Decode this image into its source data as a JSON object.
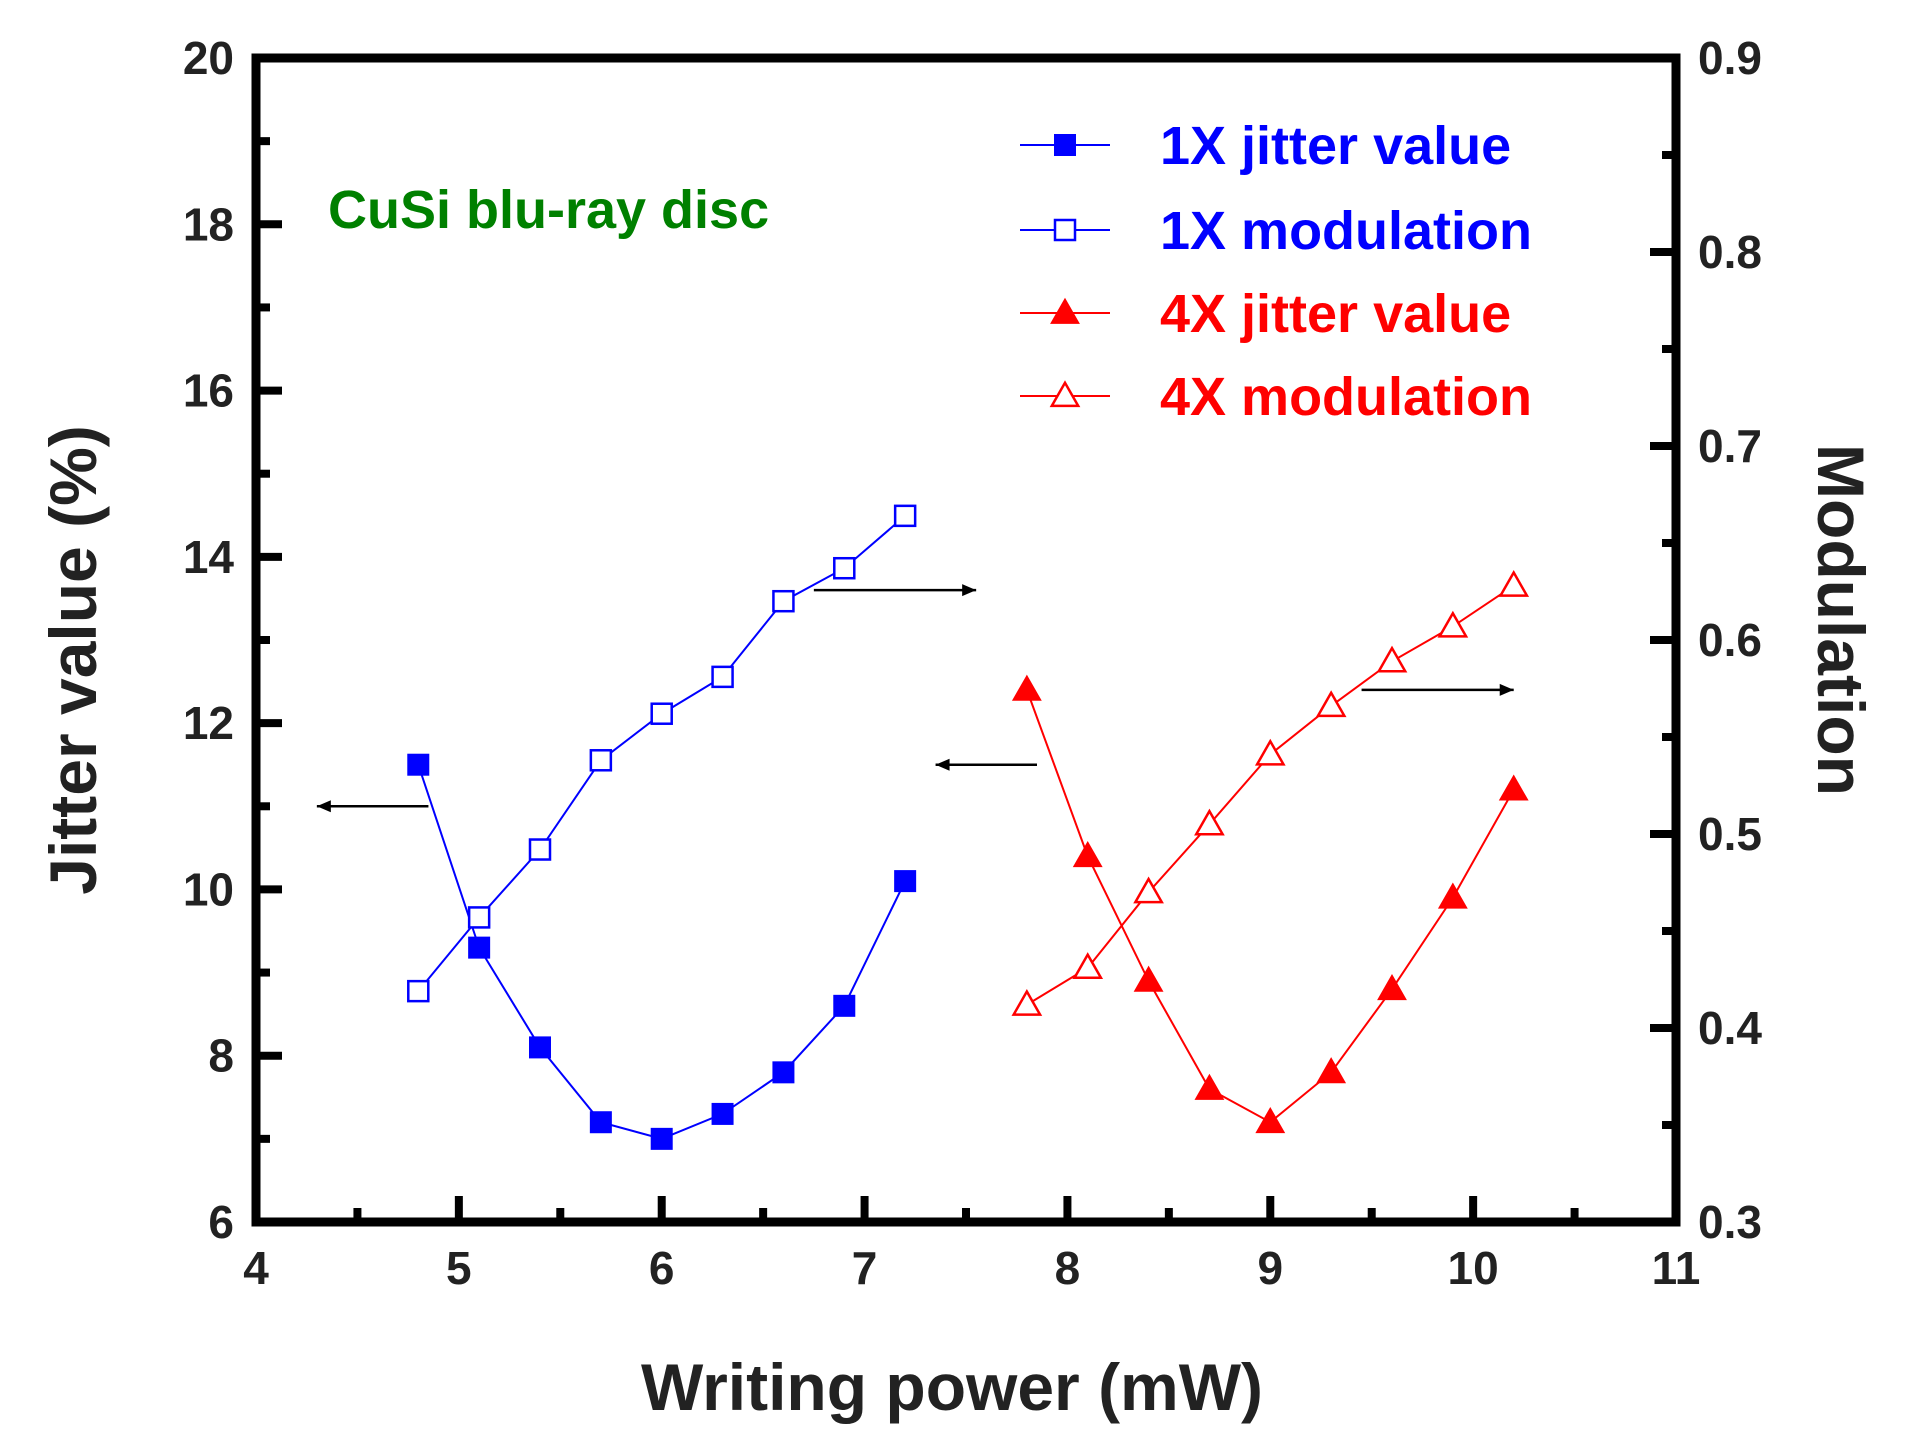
{
  "chart_data": {
    "type": "line",
    "annotation": "CuSi blu-ray disc",
    "xlabel": "Writing power (mW)",
    "ylabel_left": "Jitter value (%)",
    "ylabel_right": "Modulation",
    "xlim": [
      4,
      11
    ],
    "ylim_left": [
      6,
      20
    ],
    "ylim_right": [
      0.3,
      0.9
    ],
    "x_ticks": [
      "4",
      "5",
      "6",
      "7",
      "8",
      "9",
      "10",
      "11"
    ],
    "y_left_ticks": [
      "6",
      "8",
      "10",
      "12",
      "14",
      "16",
      "18",
      "20"
    ],
    "y_right_ticks": [
      "0.3",
      "0.4",
      "0.5",
      "0.6",
      "0.7",
      "0.8",
      "0.9"
    ],
    "grid": false,
    "legend_position": "top-right",
    "series": [
      {
        "name": "1X jitter value",
        "axis": "left",
        "color": "#0000ff",
        "marker": "square-filled",
        "x": [
          4.8,
          5.1,
          5.4,
          5.7,
          6.0,
          6.3,
          6.6,
          6.9,
          7.2
        ],
        "y": [
          11.5,
          9.3,
          8.1,
          7.2,
          7.0,
          7.3,
          7.8,
          8.6,
          10.1
        ]
      },
      {
        "name": "1X modulation",
        "axis": "right",
        "color": "#0000ff",
        "marker": "square-open",
        "x": [
          4.8,
          5.1,
          5.4,
          5.7,
          6.0,
          6.3,
          6.6,
          6.9,
          7.2
        ],
        "y": [
          0.419,
          0.457,
          0.492,
          0.538,
          0.562,
          0.581,
          0.62,
          0.637,
          0.664
        ]
      },
      {
        "name": "4X jitter value",
        "axis": "left",
        "color": "#ff0000",
        "marker": "triangle-filled",
        "x": [
          7.8,
          8.1,
          8.4,
          8.7,
          9.0,
          9.3,
          9.6,
          9.9,
          10.2
        ],
        "y": [
          12.4,
          10.4,
          8.9,
          7.6,
          7.2,
          7.8,
          8.8,
          9.9,
          11.2
        ]
      },
      {
        "name": "4X modulation",
        "axis": "right",
        "color": "#ff0000",
        "marker": "triangle-open",
        "x": [
          7.8,
          8.1,
          8.4,
          8.7,
          9.0,
          9.3,
          9.6,
          9.9,
          10.2
        ],
        "y": [
          0.412,
          0.431,
          0.47,
          0.505,
          0.541,
          0.566,
          0.589,
          0.607,
          0.628
        ]
      }
    ],
    "arrows": [
      {
        "points_to": "left",
        "from_x": 4.85,
        "to_x": 4.3,
        "y_left": 11.0
      },
      {
        "points_to": "right",
        "from_x": 6.75,
        "to_x": 7.55,
        "y_left": 13.6
      },
      {
        "points_to": "left",
        "from_x": 7.85,
        "to_x": 7.35,
        "y_left": 11.5
      },
      {
        "points_to": "right",
        "from_x": 9.45,
        "to_x": 10.2,
        "y_left": 12.4
      }
    ]
  }
}
